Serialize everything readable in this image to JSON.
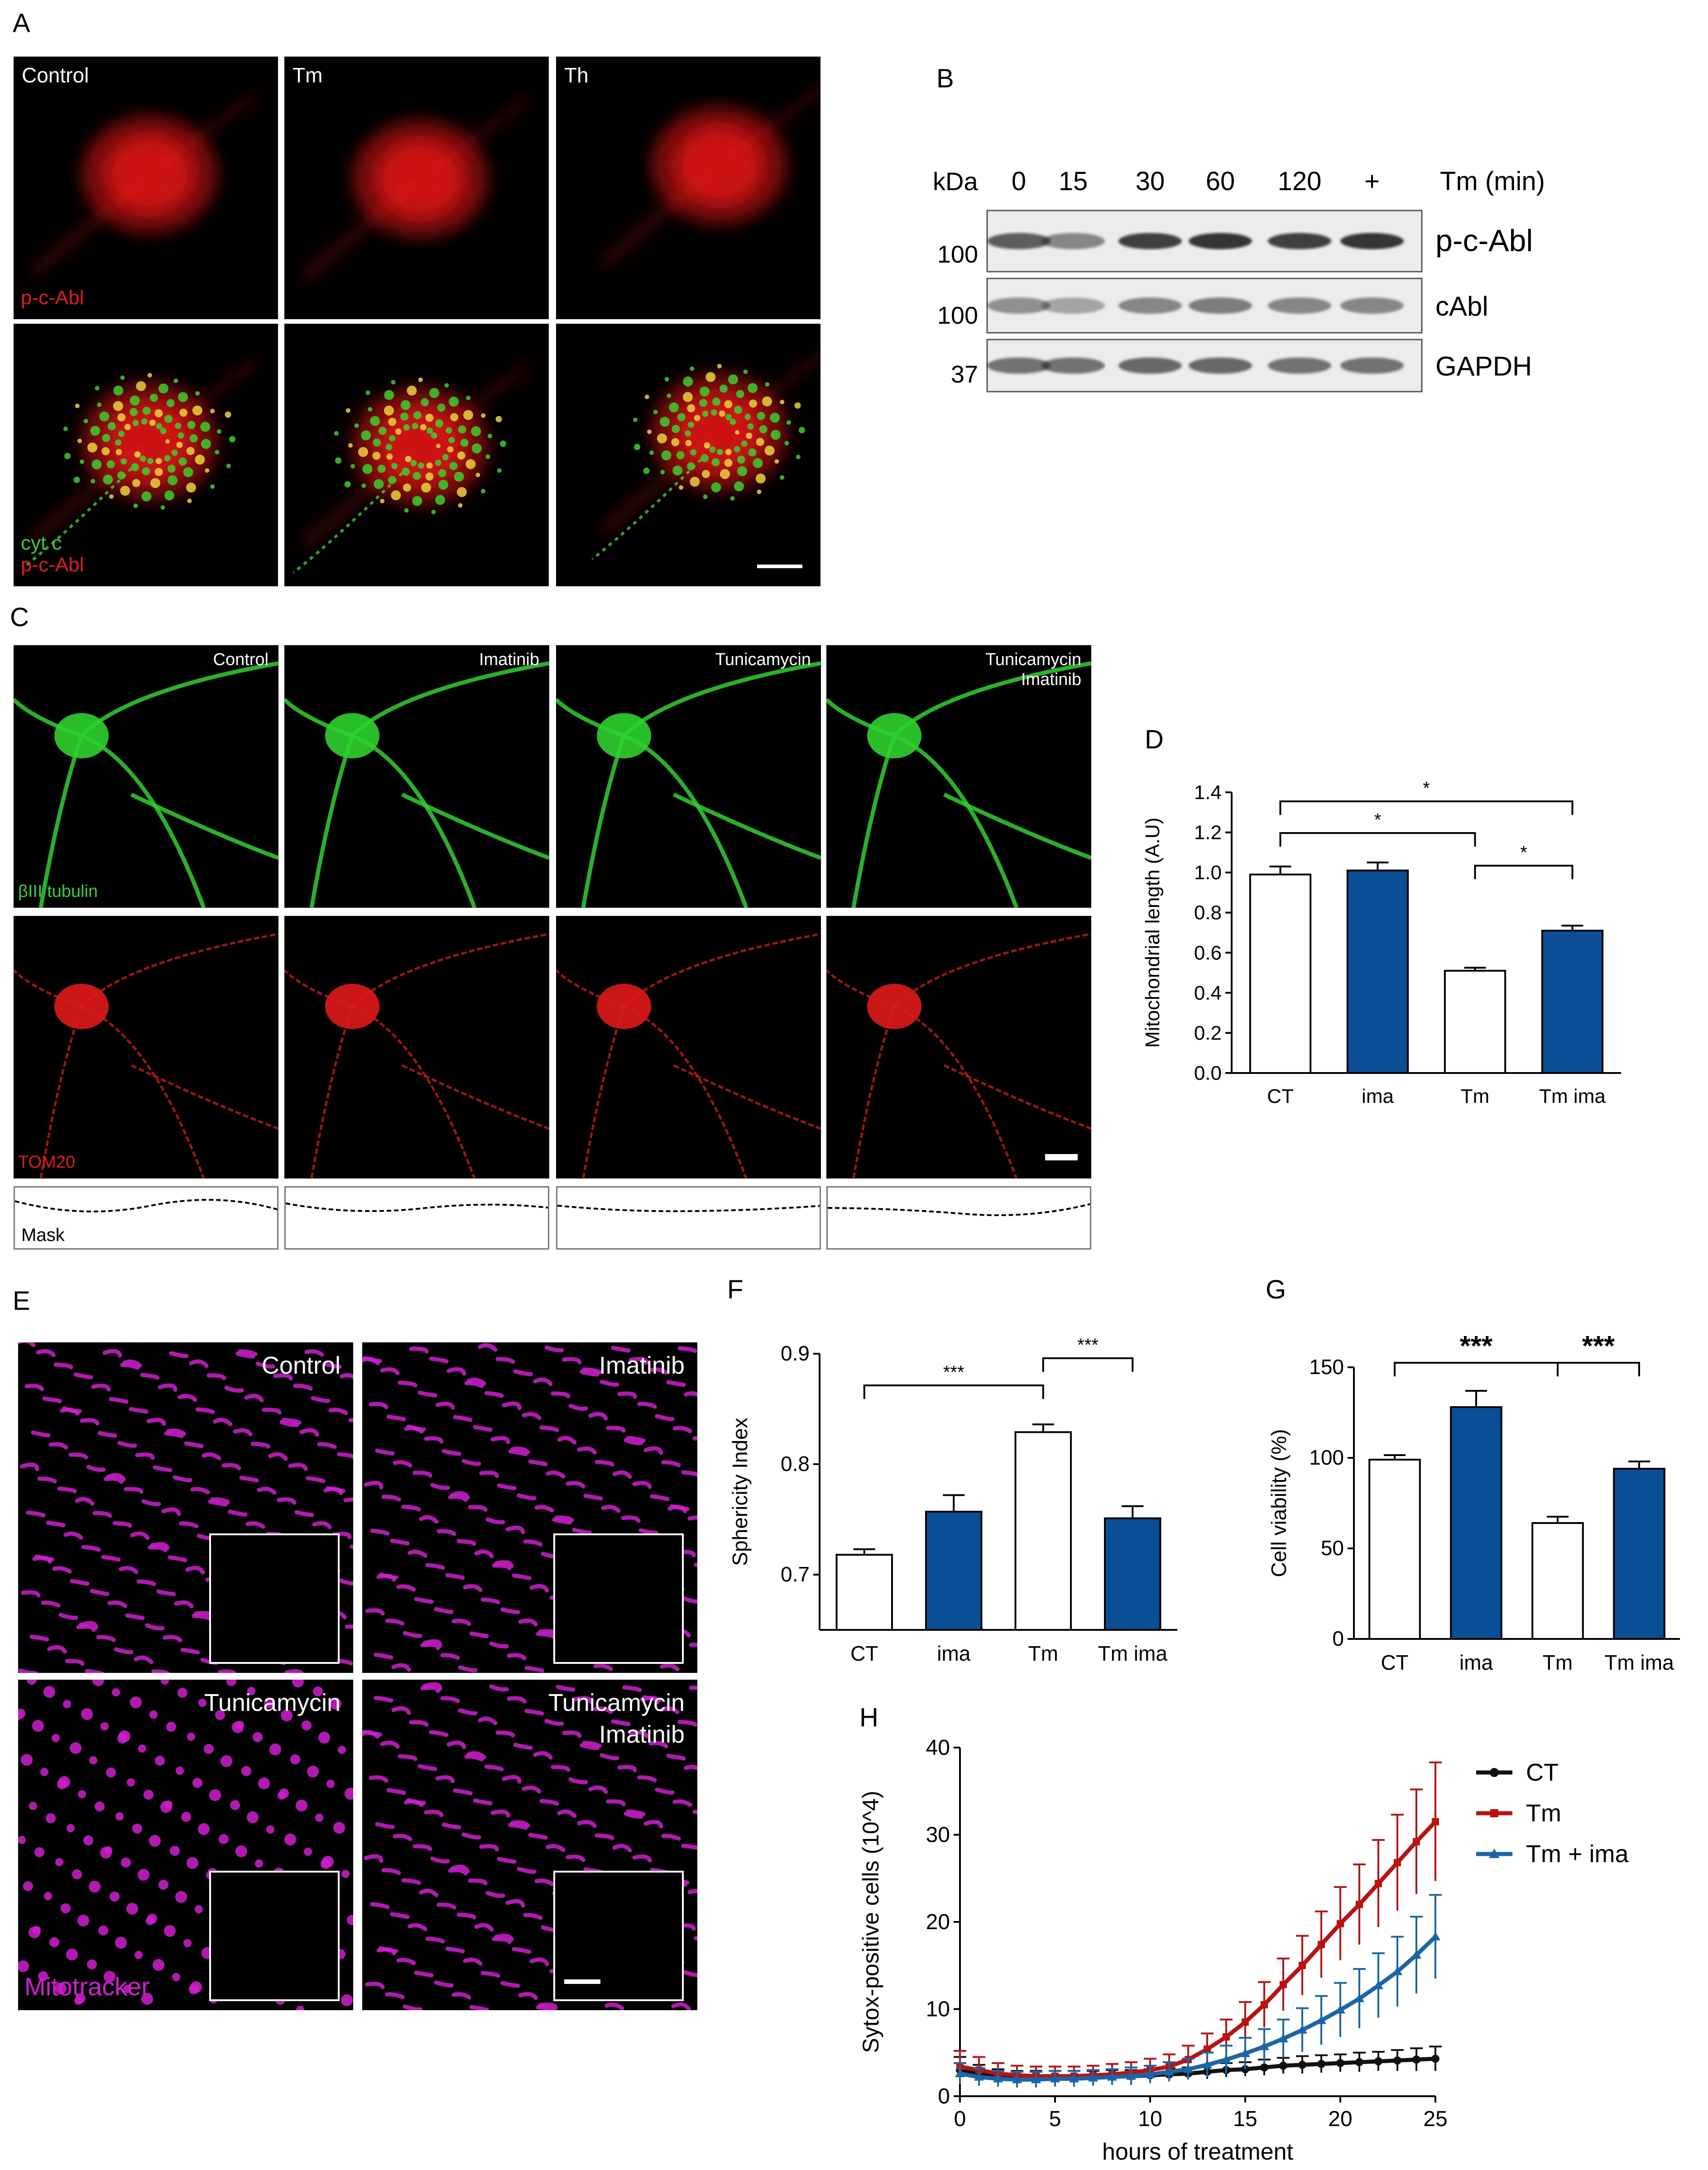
{
  "panel_letters": {
    "A": "A",
    "B": "B",
    "C": "C",
    "D": "D",
    "E": "E",
    "F": "F",
    "G": "G",
    "H": "H"
  },
  "panel_A": {
    "conditions": [
      "Control",
      "Tm",
      "Th"
    ],
    "top_stain": "p-c-Abl",
    "bottom_stain_1": "cyt c",
    "bottom_stain_2": "p-c-Abl",
    "colors": {
      "red": "#e01818",
      "green": "#3ccf2c",
      "yellow": "#e8d43a"
    }
  },
  "panel_B": {
    "kda_label": "kDa",
    "time_points": [
      "0",
      "15",
      "30",
      "60",
      "120",
      "+"
    ],
    "time_unit": "Tm (min)",
    "bands": [
      {
        "name": "p-c-Abl",
        "kda": "100"
      },
      {
        "name": "cAbl",
        "kda": "100"
      },
      {
        "name": "GAPDH",
        "kda": "37"
      }
    ]
  },
  "panel_C": {
    "conditions": [
      "Control",
      "Imatinib",
      "Tunicamycin",
      "Tunicamycin\nImatinib"
    ],
    "row1_stain": "βIII tubulin",
    "row2_stain": "TOM20",
    "mask_label": "Mask"
  },
  "panel_E": {
    "conditions": [
      "Control",
      "Imatinib",
      "Tunicamycin",
      "Tunicamycin\nImatinib"
    ],
    "stain": "Mitotracker",
    "color": "#d21cd2"
  },
  "chart_data": [
    {
      "panel": "D",
      "type": "bar",
      "categories": [
        "CT",
        "ima",
        "Tm",
        "Tm ima"
      ],
      "values": [
        0.99,
        1.01,
        0.51,
        0.71
      ],
      "errors": [
        0.04,
        0.04,
        0.015,
        0.025
      ],
      "fills": [
        "#ffffff",
        "#0a4f96",
        "#ffffff",
        "#0a4f96"
      ],
      "ylabel": "Mitochondrial length (A.U)",
      "ylim": [
        0,
        1.4
      ],
      "yticks": [
        "0.0",
        "0.2",
        "0.4",
        "0.6",
        "0.8",
        "1.0",
        "1.2",
        "1.4"
      ],
      "significance": [
        {
          "from": 0,
          "to": 3,
          "label": "*"
        },
        {
          "from": 0,
          "to": 2,
          "label": "*"
        },
        {
          "from": 2,
          "to": 3,
          "label": "*"
        }
      ]
    },
    {
      "panel": "F",
      "type": "bar",
      "categories": [
        "CT",
        "ima",
        "Tm",
        "Tm ima"
      ],
      "values": [
        0.718,
        0.757,
        0.829,
        0.751
      ],
      "errors": [
        0.005,
        0.015,
        0.007,
        0.011
      ],
      "fills": [
        "#ffffff",
        "#0a4f96",
        "#ffffff",
        "#0a4f96"
      ],
      "ylabel": "Sphericity Index",
      "ylim": [
        0.65,
        0.9
      ],
      "yticks": [
        "0.7",
        "0.8",
        "0.9"
      ],
      "significance": [
        {
          "from": 0,
          "to": 2,
          "label": "***"
        },
        {
          "from": 2,
          "to": 3,
          "label": "***"
        }
      ]
    },
    {
      "panel": "G",
      "type": "bar",
      "categories": [
        "CT",
        "ima",
        "Tm",
        "Tm ima"
      ],
      "values": [
        99,
        128,
        64,
        94
      ],
      "errors": [
        2.5,
        9,
        3.5,
        4
      ],
      "fills": [
        "#ffffff",
        "#0a4f96",
        "#ffffff",
        "#0a4f96"
      ],
      "ylabel": "Cell viability (%)",
      "ylim": [
        0,
        150
      ],
      "yticks": [
        "0",
        "50",
        "100",
        "150"
      ],
      "significance": [
        {
          "from": 0,
          "to": 2,
          "label": "***"
        },
        {
          "from": 2,
          "to": 3,
          "label": "***"
        }
      ]
    },
    {
      "panel": "H",
      "type": "line",
      "xlabel": "hours of treatment",
      "ylabel": "Sytox-positive cells (10^4)",
      "xlim": [
        0,
        25
      ],
      "ylim": [
        0,
        40
      ],
      "xticks": [
        "0",
        "5",
        "10",
        "15",
        "20",
        "25"
      ],
      "yticks": [
        "0",
        "10",
        "20",
        "30",
        "40"
      ],
      "x": [
        0,
        1,
        2,
        3,
        4,
        5,
        6,
        7,
        8,
        9,
        10,
        11,
        12,
        13,
        14,
        15,
        16,
        17,
        18,
        19,
        20,
        21,
        22,
        23,
        24,
        25
      ],
      "legend_position": "top-right",
      "series": [
        {
          "name": "CT",
          "color": "#111111",
          "values": [
            3.0,
            2.6,
            2.3,
            2.2,
            2.2,
            2.2,
            2.2,
            2.2,
            2.3,
            2.3,
            2.4,
            2.5,
            2.6,
            2.8,
            3.0,
            3.1,
            3.3,
            3.5,
            3.6,
            3.7,
            3.8,
            3.9,
            4.0,
            4.1,
            4.2,
            4.3
          ],
          "errors": [
            1.5,
            1.0,
            0.8,
            0.7,
            0.7,
            0.7,
            0.7,
            0.7,
            0.7,
            0.7,
            0.7,
            0.7,
            0.7,
            0.8,
            0.8,
            0.8,
            0.9,
            0.9,
            1.0,
            1.0,
            1.0,
            1.1,
            1.1,
            1.2,
            1.3,
            1.4
          ]
        },
        {
          "name": "Tm",
          "color": "#bb1111",
          "values": [
            3.4,
            3.0,
            2.6,
            2.4,
            2.3,
            2.3,
            2.3,
            2.4,
            2.5,
            2.7,
            3.0,
            3.4,
            4.2,
            5.4,
            6.8,
            8.5,
            10.5,
            12.8,
            15.0,
            17.4,
            19.8,
            22.0,
            24.4,
            26.8,
            29.2,
            31.5
          ]
        },
        {
          "name": "Tm + ima",
          "color": "#1a64a8",
          "values": [
            2.6,
            2.2,
            2.0,
            1.9,
            1.9,
            2.0,
            2.0,
            2.1,
            2.2,
            2.3,
            2.5,
            2.8,
            3.1,
            3.6,
            4.2,
            4.9,
            5.7,
            6.6,
            7.6,
            8.7,
            9.9,
            11.2,
            12.7,
            14.3,
            16.2,
            18.3
          ]
        }
      ],
      "error_bars_red": [
        1.8,
        1.5,
        1.2,
        1.1,
        1.1,
        1.1,
        1.1,
        1.1,
        1.2,
        1.2,
        1.3,
        1.4,
        1.6,
        1.8,
        2.0,
        2.3,
        2.6,
        3.0,
        3.4,
        3.8,
        4.2,
        4.6,
        5.0,
        5.5,
        6.0,
        6.8
      ],
      "error_bars_blue": [
        1.2,
        1.0,
        0.9,
        0.9,
        0.9,
        0.9,
        0.9,
        0.9,
        0.9,
        1.0,
        1.0,
        1.1,
        1.2,
        1.4,
        1.6,
        1.8,
        2.0,
        2.2,
        2.5,
        2.8,
        3.1,
        3.4,
        3.7,
        4.0,
        4.4,
        4.8
      ]
    }
  ]
}
